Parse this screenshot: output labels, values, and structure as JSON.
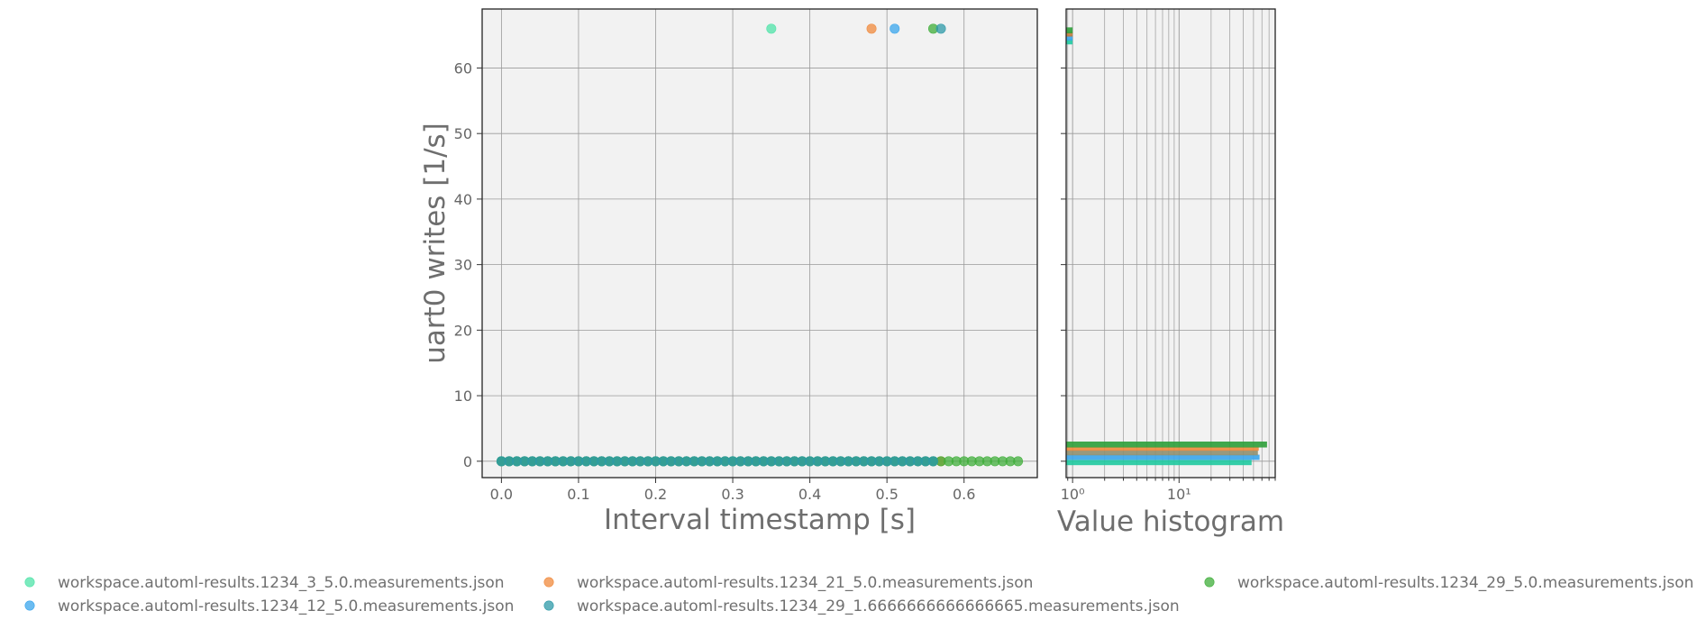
{
  "chart_data": [
    {
      "type": "scatter",
      "xlabel": "Interval timestamp [s]",
      "ylabel": "uart0 writes [1/s]",
      "xlim": [
        -0.025,
        0.695
      ],
      "ylim": [
        -2.5,
        69.0
      ],
      "xticks": [
        0.0,
        0.1,
        0.2,
        0.3,
        0.4,
        0.5,
        0.6
      ],
      "xtick_labels": [
        "0.0",
        "0.1",
        "0.2",
        "0.3",
        "0.4",
        "0.5",
        "0.6"
      ],
      "yticks": [
        0,
        10,
        20,
        30,
        40,
        50,
        60
      ],
      "ytick_labels": [
        "0",
        "10",
        "20",
        "30",
        "40",
        "50",
        "60"
      ],
      "grid": true,
      "baseline": {
        "x_start": 0.0,
        "x_step": 0.01,
        "x_end": 0.67,
        "y": 0
      },
      "series": [
        {
          "name": "workspace.automl-results.1234_3_5.0.measurements.json",
          "color": "#4fe3a8",
          "spike": {
            "x": 0.35,
            "y": 66
          },
          "x_end": 0.48
        },
        {
          "name": "workspace.automl-results.1234_21_5.0.measurements.json",
          "color": "#f08a3c",
          "spike": {
            "x": 0.48,
            "y": 66
          },
          "x_end": 0.57
        },
        {
          "name": "workspace.automl-results.1234_12_5.0.measurements.json",
          "color": "#3aa5ec",
          "spike": {
            "x": 0.51,
            "y": 66
          },
          "x_end": 0.56
        },
        {
          "name": "workspace.automl-results.1234_29_5.0.measurements.json",
          "color": "#3fae3a",
          "spike": {
            "x": 0.56,
            "y": 66
          },
          "x_end": 0.67
        },
        {
          "name": "workspace.automl-results.1234_29_1.6666666666666665.measurements.json",
          "color": "#2e9aa8",
          "spike": {
            "x": 0.57,
            "y": 66
          },
          "x_end": 0.56
        }
      ]
    },
    {
      "type": "bar",
      "orientation": "horizontal",
      "xlabel": "Value histogram",
      "xscale": "log",
      "xlim": [
        0.87,
        80
      ],
      "ylim": [
        -2.5,
        69.0
      ],
      "xticks": [
        1,
        10
      ],
      "xtick_labels": [
        "10⁰",
        "10¹"
      ],
      "grid": true,
      "bars": [
        {
          "series": 0,
          "bin_low": -0.6,
          "bin_high": 0.2,
          "count": 48,
          "color": "#1fc9a0"
        },
        {
          "series": 2,
          "bin_low": 0.2,
          "bin_high": 1.0,
          "count": 57,
          "color": "#3aa5ec"
        },
        {
          "series": 4,
          "bin_low": 0.9,
          "bin_high": 1.7,
          "count": 55,
          "color": "#8f8f6f"
        },
        {
          "series": 1,
          "bin_low": 1.6,
          "bin_high": 2.2,
          "count": 56,
          "color": "#f08a3c"
        },
        {
          "series": 3,
          "bin_low": 2.1,
          "bin_high": 3.0,
          "count": 67,
          "color": "#2e9e3a"
        },
        {
          "series": 0,
          "bin_low": 63.6,
          "bin_high": 64.4,
          "count": 1,
          "color": "#1fc9a0"
        },
        {
          "series": 2,
          "bin_low": 64.2,
          "bin_high": 65.0,
          "count": 1,
          "color": "#3aa5ec"
        },
        {
          "series": 1,
          "bin_low": 64.8,
          "bin_high": 65.5,
          "count": 1,
          "color": "#c47a3a"
        },
        {
          "series": 3,
          "bin_low": 65.3,
          "bin_high": 66.2,
          "count": 1,
          "color": "#2e9e3a"
        }
      ]
    }
  ]
}
